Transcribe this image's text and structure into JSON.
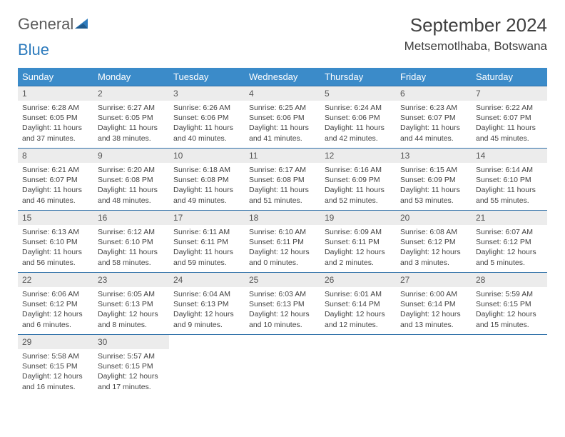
{
  "logo": {
    "general": "General",
    "blue": "Blue"
  },
  "title": "September 2024",
  "location": "Metsemotlhaba, Botswana",
  "colors": {
    "header_bg": "#3b8bc9",
    "header_text": "#ffffff",
    "row_border": "#2d6fa8",
    "daynum_bg": "#ececec",
    "text": "#444444",
    "logo_gray": "#5a5a5a",
    "logo_blue": "#2d7bbd"
  },
  "weekdays": [
    "Sunday",
    "Monday",
    "Tuesday",
    "Wednesday",
    "Thursday",
    "Friday",
    "Saturday"
  ],
  "days": [
    {
      "n": "1",
      "sr": "6:28 AM",
      "ss": "6:05 PM",
      "dl": "11 hours and 37 minutes."
    },
    {
      "n": "2",
      "sr": "6:27 AM",
      "ss": "6:05 PM",
      "dl": "11 hours and 38 minutes."
    },
    {
      "n": "3",
      "sr": "6:26 AM",
      "ss": "6:06 PM",
      "dl": "11 hours and 40 minutes."
    },
    {
      "n": "4",
      "sr": "6:25 AM",
      "ss": "6:06 PM",
      "dl": "11 hours and 41 minutes."
    },
    {
      "n": "5",
      "sr": "6:24 AM",
      "ss": "6:06 PM",
      "dl": "11 hours and 42 minutes."
    },
    {
      "n": "6",
      "sr": "6:23 AM",
      "ss": "6:07 PM",
      "dl": "11 hours and 44 minutes."
    },
    {
      "n": "7",
      "sr": "6:22 AM",
      "ss": "6:07 PM",
      "dl": "11 hours and 45 minutes."
    },
    {
      "n": "8",
      "sr": "6:21 AM",
      "ss": "6:07 PM",
      "dl": "11 hours and 46 minutes."
    },
    {
      "n": "9",
      "sr": "6:20 AM",
      "ss": "6:08 PM",
      "dl": "11 hours and 48 minutes."
    },
    {
      "n": "10",
      "sr": "6:18 AM",
      "ss": "6:08 PM",
      "dl": "11 hours and 49 minutes."
    },
    {
      "n": "11",
      "sr": "6:17 AM",
      "ss": "6:08 PM",
      "dl": "11 hours and 51 minutes."
    },
    {
      "n": "12",
      "sr": "6:16 AM",
      "ss": "6:09 PM",
      "dl": "11 hours and 52 minutes."
    },
    {
      "n": "13",
      "sr": "6:15 AM",
      "ss": "6:09 PM",
      "dl": "11 hours and 53 minutes."
    },
    {
      "n": "14",
      "sr": "6:14 AM",
      "ss": "6:10 PM",
      "dl": "11 hours and 55 minutes."
    },
    {
      "n": "15",
      "sr": "6:13 AM",
      "ss": "6:10 PM",
      "dl": "11 hours and 56 minutes."
    },
    {
      "n": "16",
      "sr": "6:12 AM",
      "ss": "6:10 PM",
      "dl": "11 hours and 58 minutes."
    },
    {
      "n": "17",
      "sr": "6:11 AM",
      "ss": "6:11 PM",
      "dl": "11 hours and 59 minutes."
    },
    {
      "n": "18",
      "sr": "6:10 AM",
      "ss": "6:11 PM",
      "dl": "12 hours and 0 minutes."
    },
    {
      "n": "19",
      "sr": "6:09 AM",
      "ss": "6:11 PM",
      "dl": "12 hours and 2 minutes."
    },
    {
      "n": "20",
      "sr": "6:08 AM",
      "ss": "6:12 PM",
      "dl": "12 hours and 3 minutes."
    },
    {
      "n": "21",
      "sr": "6:07 AM",
      "ss": "6:12 PM",
      "dl": "12 hours and 5 minutes."
    },
    {
      "n": "22",
      "sr": "6:06 AM",
      "ss": "6:12 PM",
      "dl": "12 hours and 6 minutes."
    },
    {
      "n": "23",
      "sr": "6:05 AM",
      "ss": "6:13 PM",
      "dl": "12 hours and 8 minutes."
    },
    {
      "n": "24",
      "sr": "6:04 AM",
      "ss": "6:13 PM",
      "dl": "12 hours and 9 minutes."
    },
    {
      "n": "25",
      "sr": "6:03 AM",
      "ss": "6:13 PM",
      "dl": "12 hours and 10 minutes."
    },
    {
      "n": "26",
      "sr": "6:01 AM",
      "ss": "6:14 PM",
      "dl": "12 hours and 12 minutes."
    },
    {
      "n": "27",
      "sr": "6:00 AM",
      "ss": "6:14 PM",
      "dl": "12 hours and 13 minutes."
    },
    {
      "n": "28",
      "sr": "5:59 AM",
      "ss": "6:15 PM",
      "dl": "12 hours and 15 minutes."
    },
    {
      "n": "29",
      "sr": "5:58 AM",
      "ss": "6:15 PM",
      "dl": "12 hours and 16 minutes."
    },
    {
      "n": "30",
      "sr": "5:57 AM",
      "ss": "6:15 PM",
      "dl": "12 hours and 17 minutes."
    }
  ],
  "labels": {
    "sunrise": "Sunrise:",
    "sunset": "Sunset:",
    "daylight": "Daylight:"
  }
}
